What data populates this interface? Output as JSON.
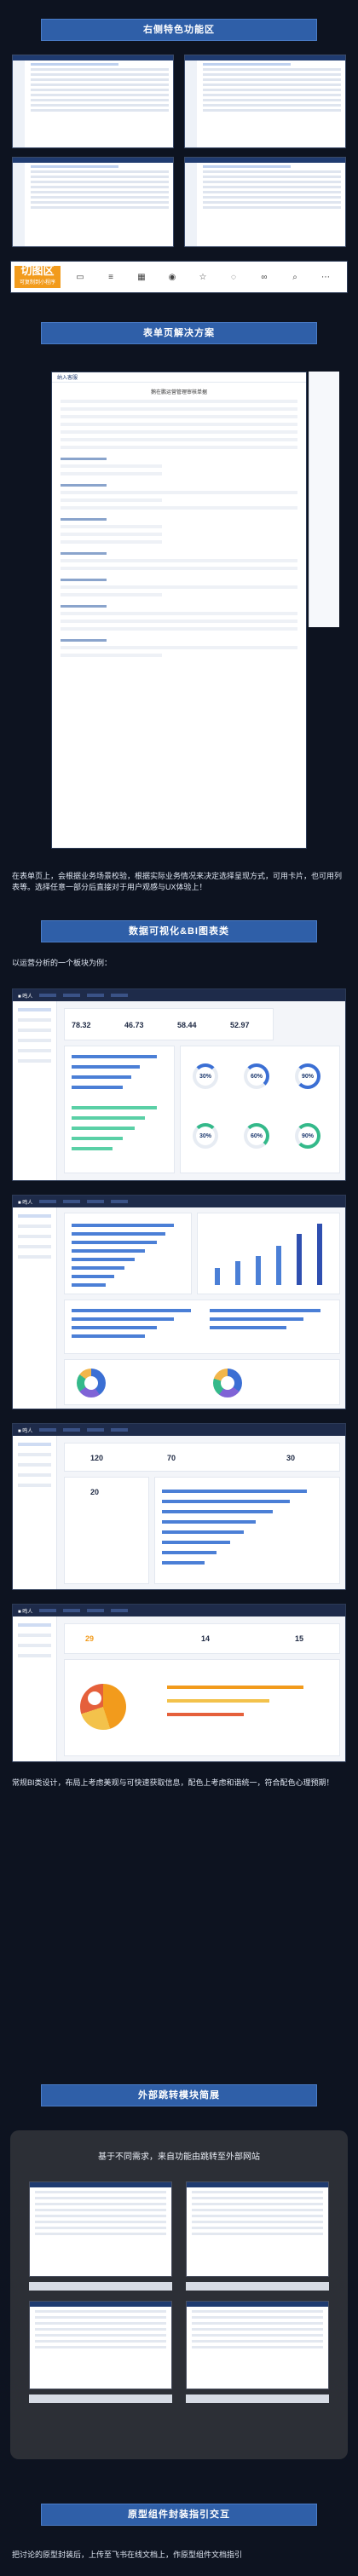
{
  "sections": {
    "s1": "右侧特色功能区",
    "s2": "表单页解决方案",
    "s3": "数据可视化&BI图表类",
    "s4": "外部跳转模块简展",
    "s5": "原型组件封装指引交互"
  },
  "toolbar": {
    "hot_title": "切图区",
    "hot_sub": "可复制到小程序"
  },
  "form": {
    "header": "纳入客服",
    "title": "鹅在鹏运营管理审核单据"
  },
  "texts": {
    "form_desc": "在表单页上，会根据业务场景校验，根据实际业务情况来决定选择呈现方式，可用卡片，也可用列表等。选择任意一部分后直接对于用户观感与UX体验上！",
    "bi_intro": "以运营分析的一个板块为例：",
    "bi_desc": "常规BI类设计，布局上考虑美观与可快速获取信息，配色上考虑和谐统一，符合配色心理预期！",
    "jump_title": "基于不同需求，来自功能由跳转至外部网站",
    "bottom": "把讨论的原型封装后，上传至飞书在线文档上，作原型组件文档指引"
  },
  "dash1": {
    "stats": [
      "78.32",
      "46.73",
      "58.44",
      "52.97"
    ],
    "rings": [
      "30%",
      "60%",
      "90%",
      "30%",
      "60%",
      "90%"
    ]
  },
  "dash3": {
    "stats": [
      "120",
      "70",
      "30",
      "20"
    ]
  },
  "dash4": {
    "stats": [
      "29",
      "14",
      "15"
    ]
  },
  "colors": {
    "accent": "#2f5fa8",
    "hot": "#f29b1c",
    "bg": "#0d1320"
  }
}
